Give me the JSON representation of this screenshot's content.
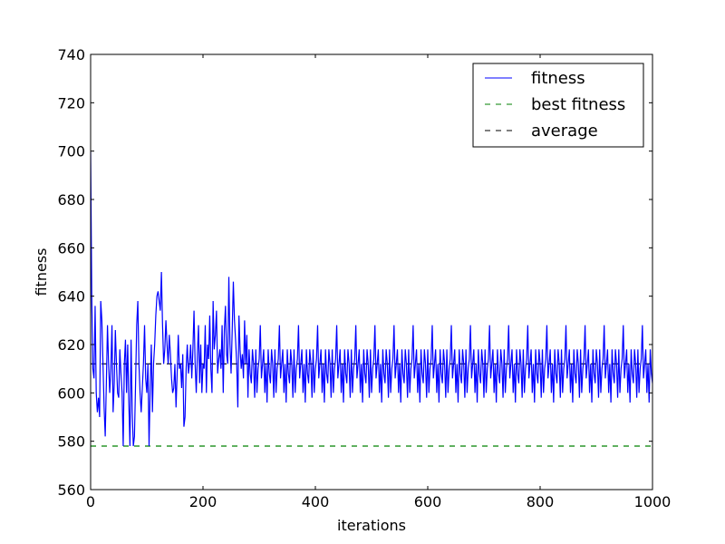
{
  "chart_data": {
    "type": "line",
    "xlabel": "iterations",
    "ylabel": "fitness",
    "xlim": [
      0,
      1000
    ],
    "ylim": [
      560,
      740
    ],
    "xticks": [
      0,
      200,
      400,
      600,
      800,
      1000
    ],
    "yticks": [
      560,
      580,
      600,
      620,
      640,
      660,
      680,
      700,
      720,
      740
    ],
    "grid": false,
    "legend_position": "top-right",
    "series": [
      {
        "name": "fitness",
        "style": "solid",
        "color": "#0000ff",
        "x": [
          0,
          2,
          4,
          6,
          8,
          10,
          12,
          14,
          16,
          18,
          20,
          22,
          24,
          26,
          28,
          30,
          32,
          34,
          36,
          38,
          40,
          42,
          44,
          46,
          48,
          50,
          52,
          54,
          56,
          58,
          60,
          62,
          64,
          66,
          68,
          70,
          72,
          74,
          76,
          78,
          80,
          82,
          84,
          86,
          88,
          90,
          92,
          94,
          96,
          98,
          100,
          102,
          104,
          106,
          108,
          110,
          112,
          114,
          116,
          118,
          120,
          122,
          124,
          126,
          128,
          130,
          132,
          134,
          136,
          138,
          140,
          142,
          144,
          146,
          148,
          150,
          152,
          154,
          156,
          158,
          160,
          162,
          164,
          166,
          168,
          170,
          172,
          174,
          176,
          178,
          180,
          182,
          184,
          186,
          188,
          190,
          192,
          194,
          196,
          198,
          200,
          202,
          204,
          206,
          208,
          210,
          212,
          214,
          216,
          218,
          220,
          222,
          224,
          226,
          228,
          230,
          232,
          234,
          236,
          238,
          240,
          242,
          244,
          246,
          248,
          250,
          252,
          254,
          256,
          258,
          260,
          262,
          264,
          266,
          268,
          270,
          272,
          274,
          276,
          278,
          280
        ],
        "y": [
          700,
          640,
          610,
          606,
          636,
          600,
          592,
          598,
          590,
          638,
          630,
          612,
          594,
          582,
          604,
          628,
          612,
          600,
          610,
          628,
          592,
          604,
          626,
          612,
          600,
          598,
          618,
          608,
          600,
          578,
          612,
          622,
          600,
          620,
          596,
          578,
          622,
          592,
          578,
          582,
          604,
          628,
          638,
          612,
          600,
          592,
          602,
          612,
          628,
          606,
          600,
          612,
          578,
          602,
          620,
          592,
          612,
          620,
          632,
          640,
          642,
          638,
          634,
          650,
          628,
          612,
          618,
          630,
          620,
          612,
          624,
          616,
          606,
          600,
          602,
          612,
          594,
          608,
          624,
          610,
          612,
          602,
          616,
          586,
          590,
          610,
          620,
          608,
          612,
          620,
          606,
          618,
          634,
          612,
          600,
          616,
          628,
          604,
          620,
          600,
          612,
          610,
          628,
          600,
          620,
          614,
          632,
          610,
          600,
          638,
          618,
          624,
          634,
          608,
          614,
          618,
          610,
          628,
          600,
          626,
          636,
          616,
          612,
          648,
          620,
          608,
          626,
          646,
          630,
          622,
          612,
          594,
          632,
          618,
          610,
          616,
          606,
          630,
          612,
          624,
          598
        ],
        "periodic_tail": {
          "from": 280,
          "to": 1000,
          "step": 2,
          "pattern": [
            618,
            608,
            604,
            618,
            612,
            598,
            618,
            600,
            610,
            614,
            628,
            606,
            612,
            618,
            600,
            612,
            596
          ]
        }
      },
      {
        "name": "best fitness",
        "style": "dashed",
        "color": "#008000",
        "x": [
          0,
          1000
        ],
        "y": [
          578,
          578
        ]
      },
      {
        "name": "average",
        "style": "dashed",
        "color": "#000000",
        "x": [
          0,
          1000
        ],
        "y": [
          612,
          612
        ]
      }
    ]
  }
}
